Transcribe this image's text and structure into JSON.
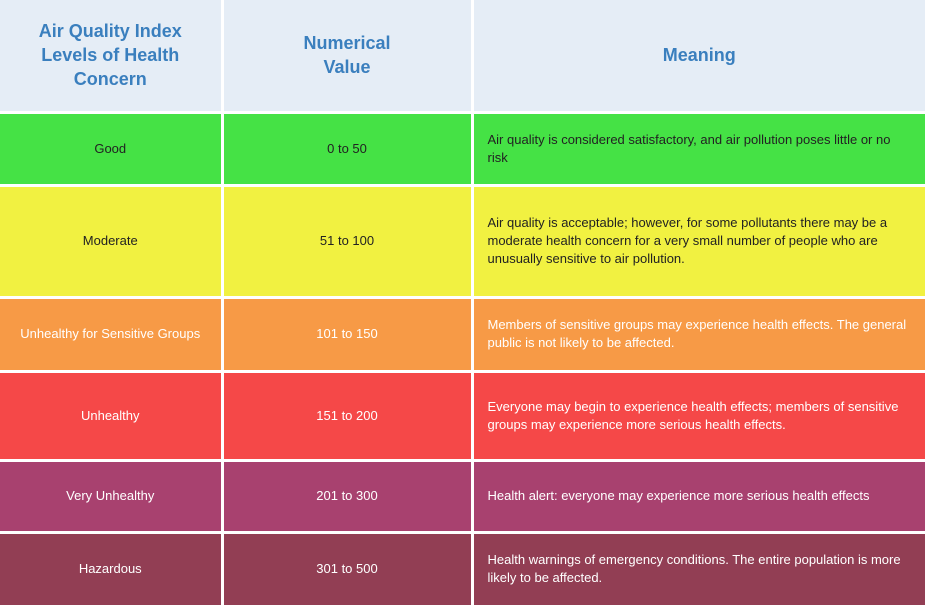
{
  "table": {
    "headers": {
      "level": "Air Quality Index Levels of Health Concern",
      "value": "Numerical Value",
      "meaning": "Meaning"
    },
    "header_bg": "#e5edf6",
    "header_text_color": "#3a7fbe",
    "rows": [
      {
        "level": "Good",
        "value": "0 to 50",
        "meaning": "Air quality is considered satisfactory, and air pollution poses little or no risk",
        "bg": "#45e245",
        "text_color": "#222222"
      },
      {
        "level": "Moderate",
        "value": "51 to 100",
        "meaning": "Air quality is acceptable; however, for some pollutants there may be a moderate health concern for a very small number of people who are unusually sensitive to air pollution.",
        "bg": "#f1f141",
        "text_color": "#222222"
      },
      {
        "level": "Unhealthy for Sensitive Groups",
        "value": "101 to 150",
        "meaning": "Members of sensitive groups may experience health effects. The general public is not likely to be affected.",
        "bg": "#f79a46",
        "text_color": "#ffffff"
      },
      {
        "level": "Unhealthy",
        "value": "151 to 200",
        "meaning": "Everyone may begin to experience health effects; members of sensitive groups may experience more serious health effects.",
        "bg": "#f54848",
        "text_color": "#ffffff"
      },
      {
        "level": "Very Unhealthy",
        "value": "201 to 300",
        "meaning": "Health alert: everyone may experience more serious health effects",
        "bg": "#a8416f",
        "text_color": "#ffffff"
      },
      {
        "level": "Hazardous",
        "value": "301 to 500",
        "meaning": "Health warnings of emergency conditions. The entire population is more likely to be affected.",
        "bg": "#923e54",
        "text_color": "#ffffff"
      }
    ]
  },
  "chart_data": {
    "type": "table",
    "columns": [
      "Air Quality Index Levels of Health Concern",
      "Numerical Value",
      "Meaning"
    ],
    "rows": [
      [
        "Good",
        "0 to 50",
        "Air quality is considered satisfactory, and air pollution poses little or no risk"
      ],
      [
        "Moderate",
        "51 to 100",
        "Air quality is acceptable; however, for some pollutants there may be a moderate health concern for a very small number of people who are unusually sensitive to air pollution."
      ],
      [
        "Unhealthy for Sensitive Groups",
        "101 to 150",
        "Members of sensitive groups may experience health effects. The general public is not likely to be affected."
      ],
      [
        "Unhealthy",
        "151 to 200",
        "Everyone may begin to experience health effects; members of sensitive groups may experience more serious health effects."
      ],
      [
        "Very Unhealthy",
        "201 to 300",
        "Health alert: everyone may experience more serious health effects"
      ],
      [
        "Hazardous",
        "301 to 500",
        "Health warnings of emergency conditions. The entire population is more likely to be affected."
      ]
    ],
    "ranges": [
      [
        0,
        50
      ],
      [
        51,
        100
      ],
      [
        101,
        150
      ],
      [
        151,
        200
      ],
      [
        201,
        300
      ],
      [
        301,
        500
      ]
    ],
    "title": "",
    "xlabel": "",
    "ylabel": ""
  }
}
